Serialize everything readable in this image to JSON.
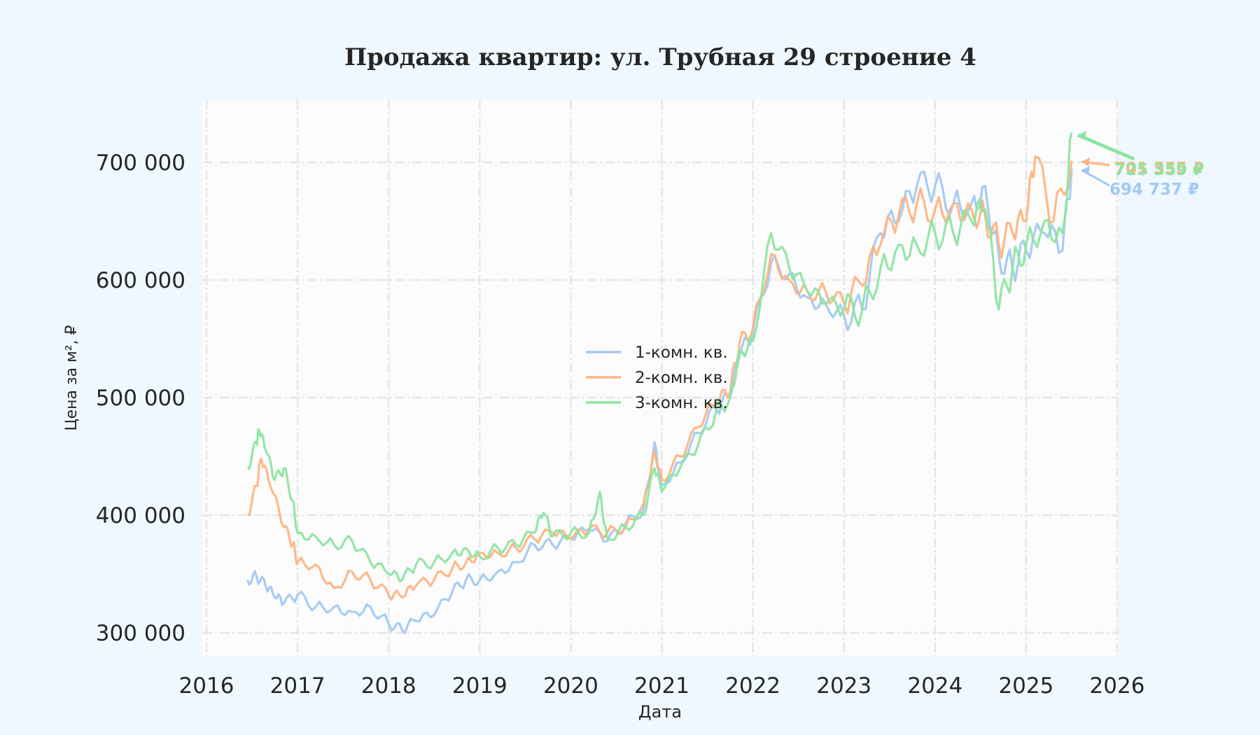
{
  "chart_data": {
    "type": "line",
    "title": "Продажа квартир: ул. Трубная 29 строение 4",
    "xlabel": "Дата",
    "ylabel": "Цена за м², ₽",
    "xlim": [
      2016,
      2026
    ],
    "ylim": [
      280000,
      745000
    ],
    "x_ticks": [
      "2016",
      "2017",
      "2018",
      "2019",
      "2020",
      "2021",
      "2022",
      "2023",
      "2024",
      "2025",
      "2026"
    ],
    "y_ticks": [
      "300 000",
      "400 000",
      "500 000",
      "600 000",
      "700 000"
    ],
    "y_tick_values": [
      300000,
      400000,
      500000,
      600000,
      700000
    ],
    "grid": true,
    "legend_position": "center",
    "series": [
      {
        "name": "1-комн. кв.",
        "color": "#a1c9f4",
        "x": [
          2016.45,
          2016.55,
          2016.65,
          2016.75,
          2016.85,
          2017.0,
          2017.2,
          2017.4,
          2017.6,
          2017.8,
          2018.0,
          2018.15,
          2018.3,
          2018.5,
          2018.7,
          2018.85,
          2019.0,
          2019.2,
          2019.4,
          2019.6,
          2019.8,
          2020.0,
          2020.2,
          2020.4,
          2020.6,
          2020.8,
          2020.92,
          2021.0,
          2021.2,
          2021.4,
          2021.6,
          2021.75,
          2021.85,
          2022.0,
          2022.2,
          2022.4,
          2022.6,
          2022.8,
          2023.0,
          2023.2,
          2023.4,
          2023.6,
          2023.8,
          2024.0,
          2024.2,
          2024.4,
          2024.55,
          2024.7,
          2024.85,
          2025.0,
          2025.2,
          2025.4,
          2025.5
        ],
        "values": [
          345000,
          348000,
          340000,
          330000,
          325000,
          332000,
          322000,
          322000,
          318000,
          322000,
          308000,
          302000,
          310000,
          315000,
          335000,
          345000,
          345000,
          352000,
          360000,
          375000,
          375000,
          380000,
          388000,
          378000,
          392000,
          405000,
          462000,
          425000,
          445000,
          470000,
          490000,
          500000,
          535000,
          555000,
          615000,
          605000,
          585000,
          580000,
          570000,
          575000,
          640000,
          650000,
          680000,
          680000,
          665000,
          665000,
          680000,
          620000,
          610000,
          625000,
          640000,
          625000,
          694737
        ]
      },
      {
        "name": "2-комн. кв.",
        "color": "#ffb482",
        "x": [
          2016.45,
          2016.55,
          2016.6,
          2016.7,
          2016.85,
          2016.95,
          2017.0,
          2017.2,
          2017.4,
          2017.6,
          2017.8,
          2018.0,
          2018.15,
          2018.3,
          2018.5,
          2018.7,
          2018.85,
          2019.0,
          2019.2,
          2019.4,
          2019.6,
          2019.8,
          2020.0,
          2020.2,
          2020.4,
          2020.6,
          2020.8,
          2020.92,
          2021.0,
          2021.2,
          2021.4,
          2021.6,
          2021.75,
          2021.85,
          2022.0,
          2022.2,
          2022.4,
          2022.6,
          2022.8,
          2023.0,
          2023.2,
          2023.4,
          2023.6,
          2023.8,
          2024.0,
          2024.2,
          2024.4,
          2024.55,
          2024.7,
          2024.85,
          2025.0,
          2025.1,
          2025.3,
          2025.5
        ],
        "values": [
          400000,
          425000,
          448000,
          425000,
          390000,
          375000,
          360000,
          358000,
          338000,
          352000,
          345000,
          332000,
          330000,
          340000,
          345000,
          355000,
          360000,
          368000,
          368000,
          372000,
          380000,
          385000,
          380000,
          388000,
          385000,
          390000,
          410000,
          455000,
          430000,
          450000,
          475000,
          495000,
          505000,
          545000,
          560000,
          622000,
          600000,
          590000,
          590000,
          580000,
          595000,
          630000,
          655000,
          665000,
          660000,
          665000,
          660000,
          655000,
          630000,
          640000,
          650000,
          705000,
          650000,
          701555
        ]
      },
      {
        "name": "3-комн. кв.",
        "color": "#8de5a1",
        "x": [
          2016.45,
          2016.55,
          2016.58,
          2016.65,
          2016.75,
          2016.85,
          2016.95,
          2017.0,
          2017.2,
          2017.4,
          2017.6,
          2017.8,
          2018.0,
          2018.15,
          2018.3,
          2018.5,
          2018.7,
          2018.85,
          2019.0,
          2019.2,
          2019.4,
          2019.6,
          2019.7,
          2019.8,
          2020.0,
          2020.2,
          2020.32,
          2020.4,
          2020.6,
          2020.8,
          2020.92,
          2021.0,
          2021.2,
          2021.4,
          2021.6,
          2021.75,
          2021.85,
          2022.0,
          2022.2,
          2022.4,
          2022.6,
          2022.8,
          2023.0,
          2023.2,
          2023.4,
          2023.6,
          2023.8,
          2024.0,
          2024.2,
          2024.4,
          2024.55,
          2024.7,
          2024.85,
          2025.0,
          2025.2,
          2025.4,
          2025.5
        ],
        "values": [
          440000,
          462000,
          472000,
          455000,
          430000,
          440000,
          412000,
          385000,
          382000,
          375000,
          378000,
          360000,
          350000,
          345000,
          358000,
          360000,
          368000,
          372000,
          365000,
          372000,
          375000,
          385000,
          402000,
          382000,
          385000,
          385000,
          420000,
          380000,
          390000,
          400000,
          440000,
          420000,
          440000,
          460000,
          490000,
          500000,
          540000,
          548000,
          640000,
          610000,
          590000,
          580000,
          575000,
          575000,
          610000,
          630000,
          630000,
          640000,
          640000,
          650000,
          660000,
          575000,
          610000,
          630000,
          650000,
          640000,
          725359
        ]
      }
    ],
    "annotations": [
      {
        "series": "1-комн. кв.",
        "text": "694 737 ₽",
        "color": "#a1c9f4"
      },
      {
        "series": "2-комн. кв.",
        "text": "701 555 ₽",
        "color": "#ffb482"
      },
      {
        "series": "3-комн. кв.",
        "text": "725 359 ₽",
        "color": "#8de5a1"
      }
    ]
  },
  "colors": {
    "background": "#f0f8ff",
    "plot_background": "#fcfcfc",
    "grid": "#e6e6e6",
    "text": "#262626"
  }
}
